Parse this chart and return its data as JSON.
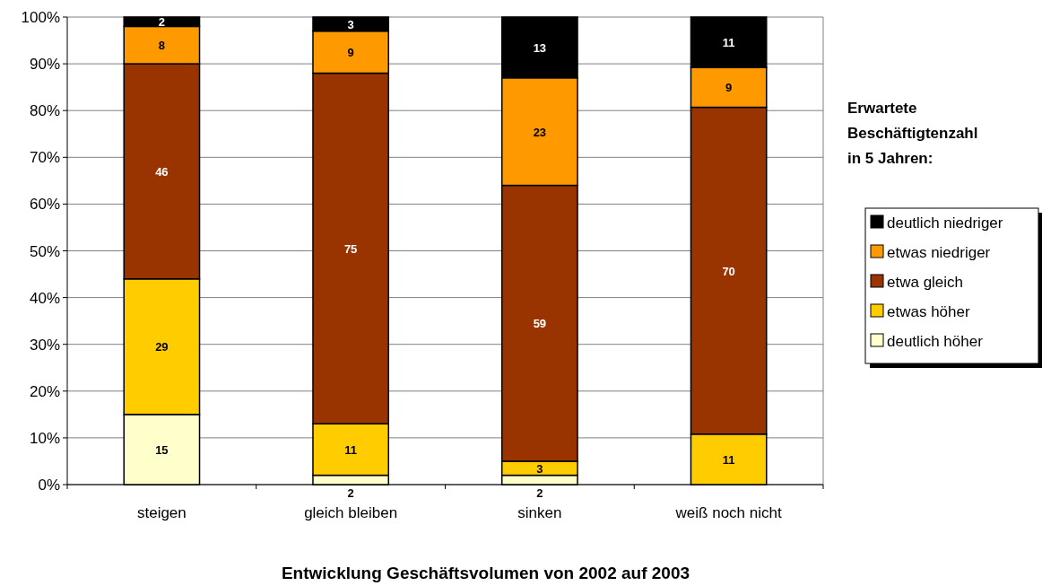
{
  "chart_data": {
    "type": "bar",
    "stacked": true,
    "xlabel": "Entwicklung Geschäftsvolumen von 2002 auf 2003",
    "legend_title": "Erwartete Beschäftigtenzahl in 5 Jahren:",
    "legend": "right",
    "grid": "y",
    "categories": [
      "steigen",
      "gleich bleiben",
      "sinken",
      "weiß noch nicht"
    ],
    "ylim": [
      0,
      100
    ],
    "yticks": [
      {
        "value": 0,
        "label": "0%"
      },
      {
        "value": 10,
        "label": "10%"
      },
      {
        "value": 20,
        "label": "20%"
      },
      {
        "value": 30,
        "label": "30%"
      },
      {
        "value": 40,
        "label": "40%"
      },
      {
        "value": 50,
        "label": "50%"
      },
      {
        "value": 60,
        "label": "60%"
      },
      {
        "value": 70,
        "label": "70%"
      },
      {
        "value": 80,
        "label": "80%"
      },
      {
        "value": 90,
        "label": "90%"
      },
      {
        "value": 100,
        "label": "100%"
      }
    ],
    "series": [
      {
        "name": "deutlich höher",
        "color": "#ffffcc",
        "values": [
          15,
          2,
          2,
          0
        ],
        "value_labels": [
          "15",
          "2",
          "2",
          null
        ]
      },
      {
        "name": "etwas höher",
        "color": "#ffcc00",
        "values": [
          29,
          11,
          3,
          10.8
        ],
        "value_labels": [
          "29",
          "11",
          "3",
          "11"
        ]
      },
      {
        "name": "etwa gleich",
        "color": "#993300",
        "values": [
          46,
          75,
          59,
          69.9
        ],
        "value_labels": [
          "46",
          "75",
          "59",
          "70"
        ]
      },
      {
        "name": "etwas niedriger",
        "color": "#ff9900",
        "values": [
          8,
          9,
          23,
          8.5
        ],
        "value_labels": [
          "8",
          "9",
          "23",
          "9"
        ]
      },
      {
        "name": "deutlich niedriger",
        "color": "#000000",
        "values": [
          2,
          3,
          13,
          10.8
        ],
        "value_labels": [
          "2",
          "3",
          "13",
          "11"
        ]
      }
    ]
  }
}
